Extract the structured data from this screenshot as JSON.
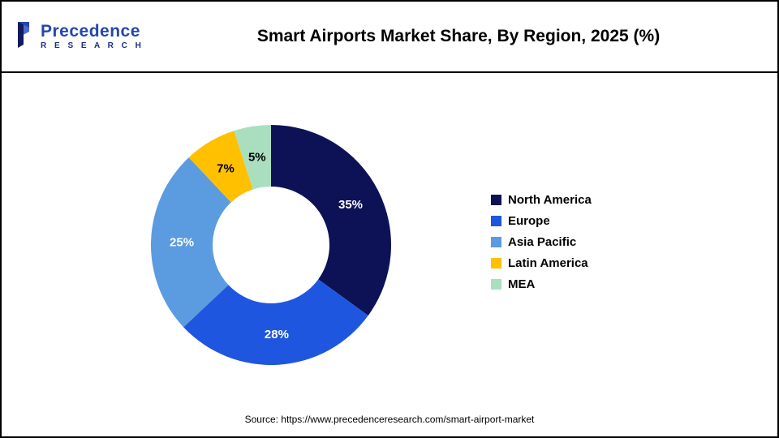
{
  "header": {
    "logo_line1": "Precedence",
    "logo_line2": "R E S E A R C H",
    "title": "Smart Airports Market Share, By Region, 2025 (%)"
  },
  "chart_data": {
    "type": "pie",
    "subtype": "donut",
    "title": "Smart Airports Market Share, By Region, 2025 (%)",
    "categories": [
      "North America",
      "Europe",
      "Asia Pacific",
      "Latin America",
      "MEA"
    ],
    "values": [
      35,
      28,
      25,
      7,
      5
    ],
    "slice_labels": [
      "35%",
      "28%",
      "25%",
      "7%",
      "5%"
    ],
    "colors": [
      "#0d1155",
      "#1f56e0",
      "#5b9be0",
      "#ffc000",
      "#a9dfbf"
    ],
    "label_colors": [
      "#ffffff",
      "#ffffff",
      "#ffffff",
      "#000000",
      "#000000"
    ],
    "legend_position": "right",
    "start_angle_deg": 0,
    "direction": "clockwise",
    "donut_hole_color": "#ffffff"
  },
  "footer": {
    "source": "Source: https://www.precedenceresearch.com/smart-airport-market"
  },
  "logo_colors": {
    "mark_blue": "#2446b0",
    "mark_dark": "#1b2f7e"
  }
}
